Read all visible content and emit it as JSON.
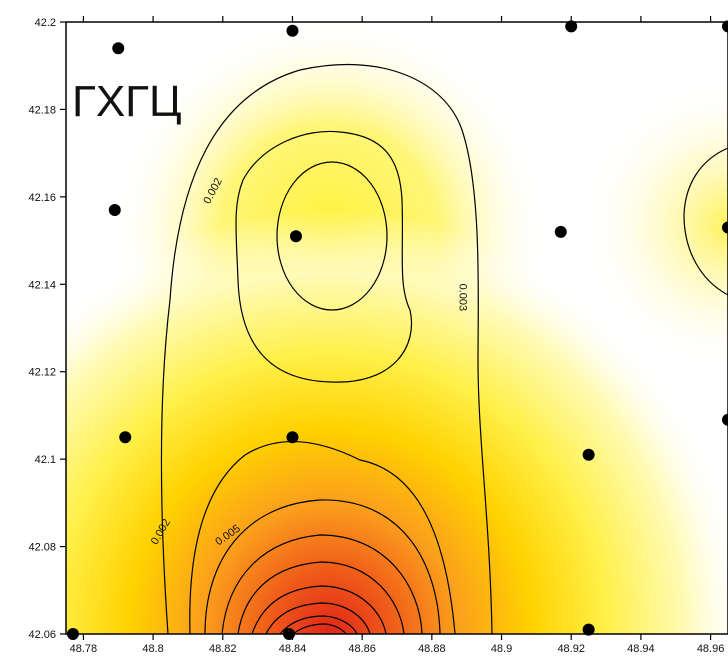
{
  "chart_data": {
    "type": "contour",
    "title": "ГХГЦ",
    "xlabel": "",
    "ylabel": "",
    "xlim": [
      48.775,
      48.965
    ],
    "ylim": [
      42.06,
      42.2
    ],
    "x_ticks": [
      "48.78",
      "48.8",
      "48.82",
      "48.84",
      "48.86",
      "48.88",
      "48.9",
      "48.92",
      "48.94",
      "48.96"
    ],
    "y_ticks": [
      "42.2",
      "42.18",
      "42.16",
      "42.14",
      "42.12",
      "42.1",
      "42.08",
      "42.06"
    ],
    "colors": {
      "high": "#e02818",
      "mid": "#ffe100",
      "low": "#ffffff",
      "line": "#000000"
    },
    "contour_labels": [
      {
        "text": "0.002",
        "x": 48.818,
        "y": 42.161
      },
      {
        "text": "0.003",
        "x": 48.888,
        "y": 42.137
      },
      {
        "text": "0.002",
        "x": 48.803,
        "y": 42.083
      },
      {
        "text": "0.005",
        "x": 48.822,
        "y": 42.082
      }
    ],
    "sample_points": [
      {
        "x": 48.79,
        "y": 42.194
      },
      {
        "x": 48.84,
        "y": 42.198
      },
      {
        "x": 48.92,
        "y": 42.199
      },
      {
        "x": 48.965,
        "y": 42.199
      },
      {
        "x": 48.789,
        "y": 42.157
      },
      {
        "x": 48.841,
        "y": 42.151
      },
      {
        "x": 48.917,
        "y": 42.152
      },
      {
        "x": 48.965,
        "y": 42.153
      },
      {
        "x": 48.792,
        "y": 42.105
      },
      {
        "x": 48.84,
        "y": 42.105
      },
      {
        "x": 48.925,
        "y": 42.101
      },
      {
        "x": 48.965,
        "y": 42.109
      },
      {
        "x": 48.777,
        "y": 42.06
      },
      {
        "x": 48.839,
        "y": 42.06
      },
      {
        "x": 48.925,
        "y": 42.061
      }
    ]
  }
}
